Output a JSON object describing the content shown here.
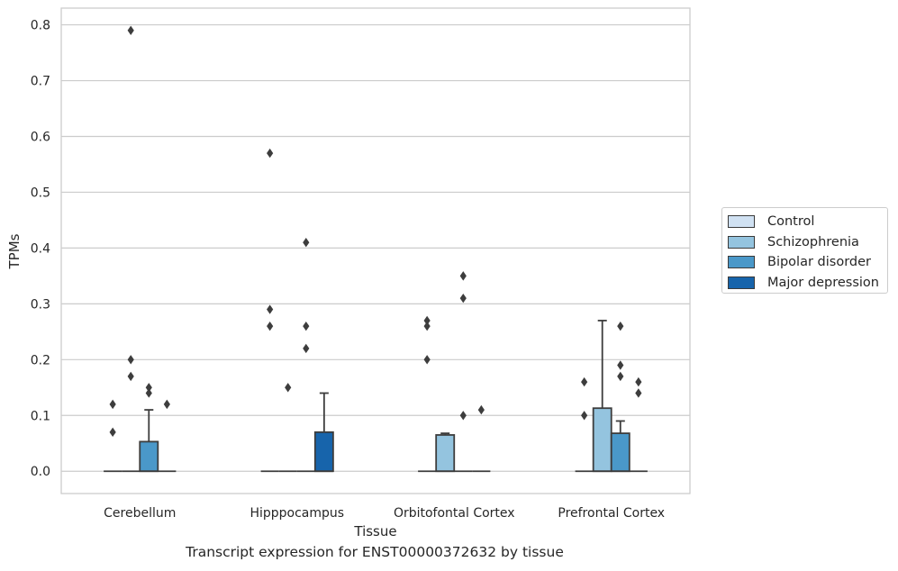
{
  "caption": "Transcript expression for ENST00000372632 by tissue",
  "chart_data": {
    "type": "box",
    "xlabel": "Tissue",
    "ylabel": "TPMs",
    "ylim": [
      -0.04,
      0.83
    ],
    "yticks": [
      0.0,
      0.1,
      0.2,
      0.3,
      0.4,
      0.5,
      0.6,
      0.7,
      0.8
    ],
    "ytick_labels": [
      "0.0",
      "0.1",
      "0.2",
      "0.3",
      "0.4",
      "0.5",
      "0.6",
      "0.7",
      "0.8"
    ],
    "grid": true,
    "legend_position": "right",
    "categories": [
      "Cerebellum",
      "Hipppocampus",
      "Orbitofontal Cortex",
      "Prefrontal Cortex"
    ],
    "series": [
      {
        "name": "Control",
        "color": "#d0e1f2",
        "boxes": [
          {
            "q1": 0,
            "median": 0,
            "q3": 0,
            "whisker_low": 0,
            "whisker_high": 0,
            "outliers": [
              0.12,
              0.07
            ]
          },
          {
            "q1": 0,
            "median": 0,
            "q3": 0,
            "whisker_low": 0,
            "whisker_high": 0,
            "outliers": [
              0.57,
              0.29,
              0.26
            ]
          },
          {
            "q1": 0,
            "median": 0,
            "q3": 0,
            "whisker_low": 0,
            "whisker_high": 0,
            "outliers": [
              0.27,
              0.26,
              0.2
            ]
          },
          {
            "q1": 0,
            "median": 0,
            "q3": 0,
            "whisker_low": 0,
            "whisker_high": 0,
            "outliers": [
              0.16,
              0.1
            ]
          }
        ]
      },
      {
        "name": "Schizophrenia",
        "color": "#94c4df",
        "boxes": [
          {
            "q1": 0,
            "median": 0,
            "q3": 0,
            "whisker_low": 0,
            "whisker_high": 0,
            "outliers": [
              0.79,
              0.2,
              0.17
            ]
          },
          {
            "q1": 0,
            "median": 0,
            "q3": 0,
            "whisker_low": 0,
            "whisker_high": 0,
            "outliers": [
              0.15
            ]
          },
          {
            "q1": 0,
            "median": 0,
            "q3": 0.065,
            "whisker_low": 0,
            "whisker_high": 0.068,
            "outliers": []
          },
          {
            "q1": 0,
            "median": 0,
            "q3": 0.113,
            "whisker_low": 0,
            "whisker_high": 0.27,
            "outliers": []
          }
        ]
      },
      {
        "name": "Bipolar disorder",
        "color": "#4a98c9",
        "boxes": [
          {
            "q1": 0,
            "median": 0,
            "q3": 0.053,
            "whisker_low": 0,
            "whisker_high": 0.11,
            "outliers": [
              0.15,
              0.14
            ]
          },
          {
            "q1": 0,
            "median": 0,
            "q3": 0,
            "whisker_low": 0,
            "whisker_high": 0,
            "outliers": [
              0.41,
              0.26,
              0.22
            ]
          },
          {
            "q1": 0,
            "median": 0,
            "q3": 0,
            "whisker_low": 0,
            "whisker_high": 0,
            "outliers": [
              0.35,
              0.31,
              0.1
            ]
          },
          {
            "q1": 0,
            "median": 0,
            "q3": 0.068,
            "whisker_low": 0,
            "whisker_high": 0.09,
            "outliers": [
              0.26,
              0.19,
              0.17
            ]
          }
        ]
      },
      {
        "name": "Major depression",
        "color": "#1764ab",
        "boxes": [
          {
            "q1": 0,
            "median": 0,
            "q3": 0,
            "whisker_low": 0,
            "whisker_high": 0,
            "outliers": [
              0.12
            ]
          },
          {
            "q1": 0,
            "median": 0,
            "q3": 0.07,
            "whisker_low": 0,
            "whisker_high": 0.14,
            "outliers": []
          },
          {
            "q1": 0,
            "median": 0,
            "q3": 0,
            "whisker_low": 0,
            "whisker_high": 0,
            "outliers": [
              0.11
            ]
          },
          {
            "q1": 0,
            "median": 0,
            "q3": 0,
            "whisker_low": 0,
            "whisker_high": 0,
            "outliers": [
              0.16,
              0.14
            ]
          }
        ]
      }
    ]
  }
}
